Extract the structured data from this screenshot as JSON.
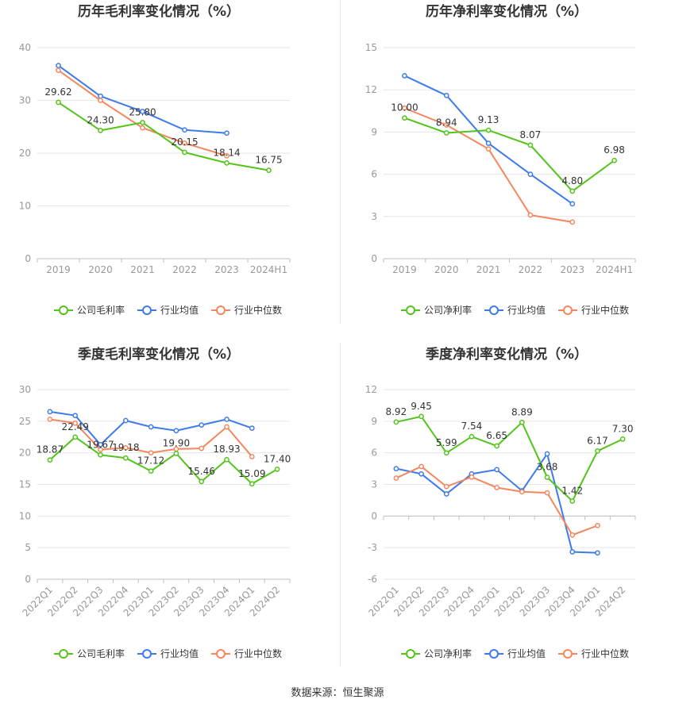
{
  "source_label": "数据来源：恒生聚源",
  "colors": {
    "company": "#52c41a",
    "industry_avg": "#3e7bea",
    "industry_median": "#f5875e"
  },
  "chart_data": [
    {
      "type": "line",
      "title": "历年毛利率变化情况（%）",
      "categories": [
        "2019",
        "2020",
        "2021",
        "2022",
        "2023",
        "2024H1"
      ],
      "ylim": [
        0,
        40
      ],
      "yticks": [
        0,
        10,
        20,
        30,
        40
      ],
      "grid": true,
      "legend_position": "bottom",
      "series": [
        {
          "name": "公司毛利率",
          "color": "#52c41a",
          "labels": true,
          "values": [
            29.62,
            24.3,
            25.8,
            20.15,
            18.14,
            16.75
          ]
        },
        {
          "name": "行业均值",
          "color": "#3e7bea",
          "labels": false,
          "values": [
            36.6,
            30.8,
            27.9,
            24.4,
            23.8,
            null
          ]
        },
        {
          "name": "行业中位数",
          "color": "#f5875e",
          "labels": false,
          "values": [
            35.7,
            30.0,
            24.8,
            21.9,
            19.5,
            null
          ]
        }
      ]
    },
    {
      "type": "line",
      "title": "历年净利率变化情况（%）",
      "categories": [
        "2019",
        "2020",
        "2021",
        "2022",
        "2023",
        "2024H1"
      ],
      "ylim": [
        0,
        15
      ],
      "yticks": [
        0,
        3,
        6,
        9,
        12,
        15
      ],
      "grid": true,
      "legend_position": "bottom",
      "series": [
        {
          "name": "公司净利率",
          "color": "#52c41a",
          "labels": true,
          "values": [
            10.0,
            8.94,
            9.13,
            8.07,
            4.8,
            6.98
          ]
        },
        {
          "name": "行业均值",
          "color": "#3e7bea",
          "labels": false,
          "values": [
            13.0,
            11.6,
            8.2,
            6.0,
            3.9,
            null
          ]
        },
        {
          "name": "行业中位数",
          "color": "#f5875e",
          "labels": false,
          "values": [
            10.7,
            9.5,
            7.8,
            3.1,
            2.6,
            null
          ]
        }
      ]
    },
    {
      "type": "line",
      "title": "季度毛利率变化情况（%）",
      "categories": [
        "2022Q1",
        "2022Q2",
        "2022Q3",
        "2022Q4",
        "2023Q1",
        "2023Q2",
        "2023Q3",
        "2023Q4",
        "2024Q1",
        "2024Q2"
      ],
      "rotate_labels": true,
      "ylim": [
        0,
        30
      ],
      "yticks": [
        0,
        5,
        10,
        15,
        20,
        25,
        30
      ],
      "grid": true,
      "legend_position": "bottom",
      "series": [
        {
          "name": "公司毛利率",
          "color": "#52c41a",
          "labels": true,
          "values": [
            18.87,
            22.49,
            19.67,
            19.18,
            17.12,
            19.9,
            15.46,
            18.93,
            15.09,
            17.4
          ]
        },
        {
          "name": "行业均值",
          "color": "#3e7bea",
          "labels": false,
          "values": [
            26.5,
            25.9,
            21.3,
            25.1,
            24.1,
            23.5,
            24.4,
            25.3,
            23.9,
            null
          ]
        },
        {
          "name": "行业中位数",
          "color": "#f5875e",
          "labels": false,
          "values": [
            25.3,
            24.7,
            20.5,
            20.8,
            20.0,
            20.6,
            20.7,
            24.1,
            19.4,
            null
          ]
        }
      ]
    },
    {
      "type": "line",
      "title": "季度净利率变化情况（%）",
      "categories": [
        "2022Q1",
        "2022Q2",
        "2022Q3",
        "2022Q4",
        "2023Q1",
        "2023Q2",
        "2023Q3",
        "2023Q4",
        "2024Q1",
        "2024Q2"
      ],
      "rotate_labels": true,
      "ylim": [
        -6,
        12
      ],
      "yticks": [
        -6,
        -3,
        0,
        3,
        6,
        9,
        12
      ],
      "grid": true,
      "legend_position": "bottom",
      "series": [
        {
          "name": "公司净利率",
          "color": "#52c41a",
          "labels": true,
          "values": [
            8.92,
            9.45,
            5.99,
            7.54,
            6.65,
            8.89,
            3.68,
            1.42,
            6.17,
            7.3
          ]
        },
        {
          "name": "行业均值",
          "color": "#3e7bea",
          "labels": false,
          "values": [
            4.5,
            4.0,
            2.1,
            4.0,
            4.4,
            2.4,
            5.9,
            -3.4,
            -3.5,
            null
          ]
        },
        {
          "name": "行业中位数",
          "color": "#f5875e",
          "labels": false,
          "values": [
            3.6,
            4.7,
            2.8,
            3.7,
            2.7,
            2.3,
            2.2,
            -1.8,
            -0.9,
            null
          ]
        }
      ]
    }
  ]
}
